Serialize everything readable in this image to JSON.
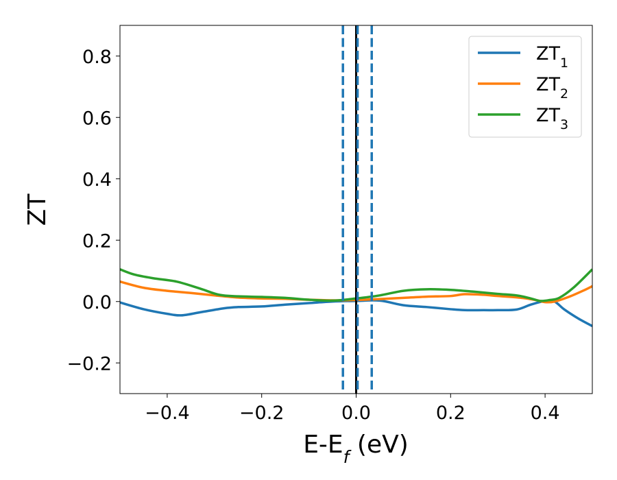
{
  "chart_data": {
    "type": "line",
    "xlabel": "E-E_f (eV)",
    "ylabel": "ZT",
    "xlim": [
      -0.5,
      0.5
    ],
    "ylim": [
      -0.3,
      0.9
    ],
    "xticks": [
      -0.4,
      -0.2,
      0.0,
      0.2,
      0.4
    ],
    "yticks": [
      -0.2,
      0.0,
      0.2,
      0.4,
      0.6,
      0.8
    ],
    "xtick_labels": [
      "−0.4",
      "−0.2",
      "0.0",
      "0.2",
      "0.4"
    ],
    "ytick_labels": [
      "−0.2",
      "0.0",
      "0.2",
      "0.4",
      "0.6",
      "0.8"
    ],
    "grid": false,
    "legend_position": "top-right",
    "vertical_lines": [
      {
        "x": 0.0,
        "color": "#000000",
        "style": "solid"
      },
      {
        "x": -0.028,
        "color": "#1f77b4",
        "style": "dashed"
      },
      {
        "x": 0.003,
        "color": "#1f77b4",
        "style": "dashed"
      },
      {
        "x": 0.033,
        "color": "#1f77b4",
        "style": "dashed"
      }
    ],
    "series": [
      {
        "name": "ZT1",
        "color": "#1f77b4",
        "x": [
          -0.5,
          -0.45,
          -0.4,
          -0.37,
          -0.33,
          -0.28,
          -0.25,
          -0.2,
          -0.15,
          -0.1,
          -0.05,
          0.0,
          0.05,
          0.1,
          0.15,
          0.2,
          0.23,
          0.27,
          0.3,
          0.34,
          0.37,
          0.4,
          0.42,
          0.44,
          0.47,
          0.5
        ],
        "y": [
          -0.003,
          -0.025,
          -0.04,
          -0.045,
          -0.035,
          -0.022,
          -0.018,
          -0.016,
          -0.01,
          -0.005,
          0.0,
          0.002,
          0.003,
          -0.012,
          -0.018,
          -0.025,
          -0.028,
          -0.028,
          -0.028,
          -0.026,
          -0.01,
          0.002,
          0.0,
          -0.025,
          -0.055,
          -0.08
        ]
      },
      {
        "name": "ZT2",
        "color": "#ff7f0e",
        "x": [
          -0.5,
          -0.45,
          -0.4,
          -0.35,
          -0.3,
          -0.25,
          -0.2,
          -0.15,
          -0.1,
          -0.05,
          0.0,
          0.05,
          0.1,
          0.15,
          0.2,
          0.23,
          0.27,
          0.3,
          0.35,
          0.38,
          0.4,
          0.42,
          0.45,
          0.48,
          0.5
        ],
        "y": [
          0.065,
          0.045,
          0.035,
          0.028,
          0.02,
          0.013,
          0.01,
          0.009,
          0.006,
          0.004,
          0.005,
          0.008,
          0.012,
          0.016,
          0.018,
          0.024,
          0.022,
          0.018,
          0.012,
          0.005,
          -0.002,
          0.0,
          0.015,
          0.035,
          0.05
        ]
      },
      {
        "name": "ZT3",
        "color": "#2ca02c",
        "x": [
          -0.5,
          -0.47,
          -0.43,
          -0.38,
          -0.33,
          -0.29,
          -0.25,
          -0.2,
          -0.15,
          -0.1,
          -0.05,
          0.0,
          0.05,
          0.1,
          0.15,
          0.2,
          0.25,
          0.3,
          0.34,
          0.37,
          0.39,
          0.41,
          0.43,
          0.46,
          0.5
        ],
        "y": [
          0.105,
          0.088,
          0.076,
          0.065,
          0.042,
          0.022,
          0.017,
          0.015,
          0.012,
          0.006,
          0.003,
          0.01,
          0.02,
          0.035,
          0.04,
          0.038,
          0.032,
          0.025,
          0.02,
          0.01,
          0.002,
          0.005,
          0.012,
          0.045,
          0.105
        ]
      }
    ],
    "legend": [
      {
        "base": "ZT",
        "sub": "1",
        "color": "#1f77b4"
      },
      {
        "base": "ZT",
        "sub": "2",
        "color": "#ff7f0e"
      },
      {
        "base": "ZT",
        "sub": "3",
        "color": "#2ca02c"
      }
    ]
  }
}
